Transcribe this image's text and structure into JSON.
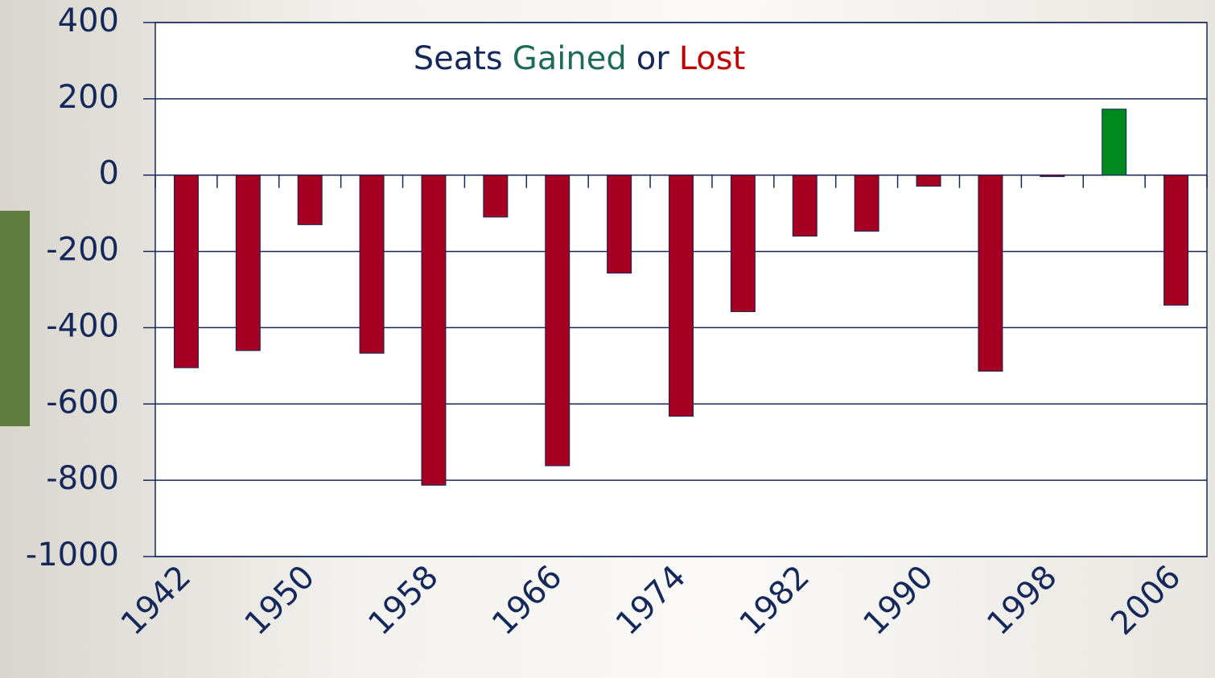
{
  "chart_data": {
    "type": "bar",
    "title_parts": [
      {
        "text": "Seats",
        "color": "#14285a"
      },
      {
        "text": "Gained",
        "color": "#1f6b5a"
      },
      {
        "text": "or",
        "color": "#14285a"
      },
      {
        "text": "Lost",
        "color": "#c00000"
      }
    ],
    "categories": [
      "1942",
      null,
      "1950",
      null,
      "1958",
      null,
      "1966",
      null,
      "1974",
      null,
      "1982",
      null,
      "1990",
      null,
      "1998",
      null,
      "2006"
    ],
    "values": [
      -505,
      -460,
      -130,
      -467,
      -813,
      -110,
      -762,
      -257,
      -632,
      -358,
      -160,
      -147,
      -29,
      -514,
      -4,
      173,
      -341
    ],
    "color": "#a50021",
    "positive_color": "#008a1e",
    "ylim": [
      -1000,
      400
    ],
    "yticks": [
      -1000,
      -800,
      -600,
      -400,
      -200,
      0,
      200,
      400
    ],
    "grid": true
  }
}
